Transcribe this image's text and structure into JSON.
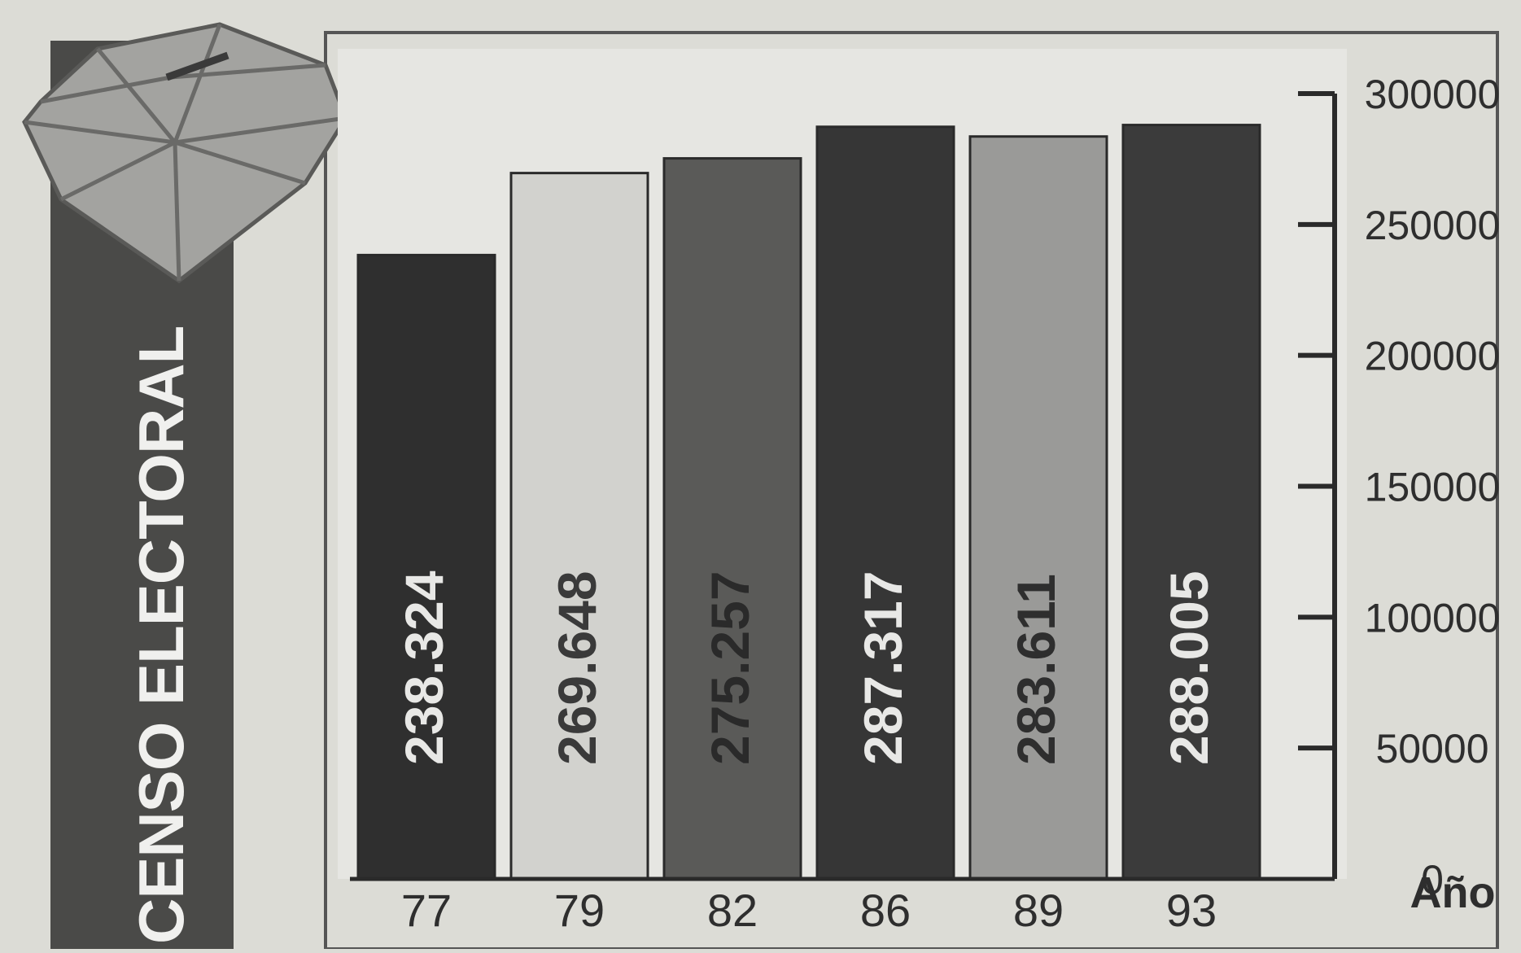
{
  "chart_data": {
    "type": "bar",
    "title": "CENSO ELECTORAL",
    "xlabel": "Año",
    "ylabel": "",
    "categories": [
      "77",
      "79",
      "82",
      "86",
      "89",
      "93"
    ],
    "values": [
      238324,
      269648,
      275257,
      287317,
      283611,
      288005
    ],
    "value_labels": [
      "238.324",
      "269.648",
      "275.257",
      "287.317",
      "283.611",
      "288.005"
    ],
    "bar_colors": [
      "#2f2f2f",
      "#d2d2ce",
      "#5a5a58",
      "#363636",
      "#9a9a98",
      "#3b3b3b"
    ],
    "value_label_colors": [
      "#e8e8e6",
      "#3a3a3a",
      "#2a2a2a",
      "#e8e8e6",
      "#2e2e2e",
      "#e8e8e6"
    ],
    "ylim": [
      0,
      300000
    ],
    "y_ticks": [
      0,
      50000,
      100000,
      150000,
      200000,
      250000,
      300000
    ],
    "y_tick_labels": [
      "0",
      "50000",
      "100000",
      "150000",
      "200000",
      "250000",
      "300000"
    ],
    "y_axis_side": "right",
    "grid": false,
    "legend": "none",
    "decoration": "ballot-box-icon",
    "colors": {
      "background": "#dcdcd6",
      "plot_background": "#e6e6e2",
      "title_band": "#4a4a48",
      "title_text": "#f0f0ee",
      "axis": "#2a2a2a",
      "tick_text": "#2e2e2e"
    }
  }
}
